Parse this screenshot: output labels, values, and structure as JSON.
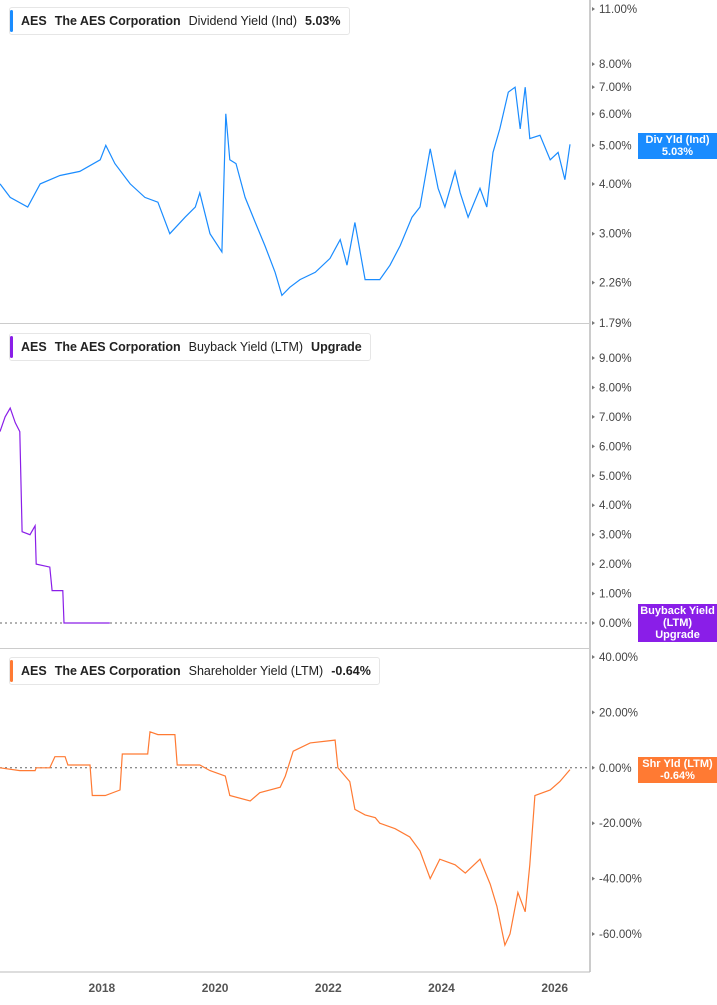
{
  "chart_data": [
    {
      "type": "line",
      "ticker": "AES",
      "company": "The AES Corporation",
      "metric": "Dividend Yield (Ind)",
      "current": "5.03%",
      "tag_label": "Div Yld (Ind)",
      "color": "#1a8cff",
      "scale": "log",
      "ylim": [
        1.79,
        11.0
      ],
      "yticks": [
        "11.00%",
        "8.00%",
        "7.00%",
        "6.00%",
        "5.00%",
        "4.00%",
        "3.00%",
        "2.26%",
        "1.79%"
      ],
      "ytick_values": [
        11,
        8,
        7,
        6,
        5,
        4,
        3,
        2.26,
        1.79
      ],
      "x": [
        2016.2,
        2016.38,
        2016.69,
        2016.91,
        2017.26,
        2017.61,
        2017.97,
        2018.07,
        2018.23,
        2018.5,
        2018.76,
        2018.99,
        2019.2,
        2019.47,
        2019.65,
        2019.73,
        2019.91,
        2020.12,
        2020.19,
        2020.26,
        2020.37,
        2020.53,
        2020.71,
        2020.88,
        2021.06,
        2021.18,
        2021.32,
        2021.5,
        2021.77,
        2022.03,
        2022.21,
        2022.33,
        2022.47,
        2022.65,
        2022.91,
        2023.09,
        2023.27,
        2023.48,
        2023.62,
        2023.8,
        2023.94,
        2024.06,
        2024.24,
        2024.33,
        2024.47,
        2024.68,
        2024.8,
        2024.91,
        2025.03,
        2025.18,
        2025.3,
        2025.39,
        2025.48,
        2025.56,
        2025.74,
        2025.92,
        2026.06,
        2026.18,
        2026.27
      ],
      "y": [
        4.0,
        3.7,
        3.5,
        4.0,
        4.2,
        4.3,
        4.6,
        5.0,
        4.5,
        4.0,
        3.7,
        3.6,
        3.0,
        3.3,
        3.5,
        3.8,
        3.0,
        2.7,
        6.0,
        4.6,
        4.5,
        3.7,
        3.2,
        2.8,
        2.4,
        2.1,
        2.2,
        2.3,
        2.4,
        2.6,
        2.9,
        2.5,
        3.2,
        2.3,
        2.3,
        2.5,
        2.8,
        3.3,
        3.5,
        4.9,
        3.9,
        3.5,
        4.3,
        3.8,
        3.3,
        3.9,
        3.5,
        4.8,
        5.5,
        6.8,
        7.0,
        5.5,
        7.0,
        5.2,
        5.3,
        4.6,
        4.8,
        4.1,
        5.03
      ]
    },
    {
      "type": "line",
      "ticker": "AES",
      "company": "The AES Corporation",
      "metric": "Buyback Yield (LTM)",
      "current": "Upgrade",
      "tag_label": "Buyback Yield (LTM)",
      "color": "#8a1ee8",
      "scale": "linear",
      "ylim": [
        0,
        9
      ],
      "yticks": [
        "9.00%",
        "8.00%",
        "7.00%",
        "6.00%",
        "5.00%",
        "4.00%",
        "3.00%",
        "2.00%",
        "1.00%",
        "0.00%"
      ],
      "ytick_values": [
        9,
        8,
        7,
        6,
        5,
        4,
        3,
        2,
        1,
        0
      ],
      "x": [
        2016.2,
        2016.29,
        2016.38,
        2016.47,
        2016.55,
        2016.59,
        2016.73,
        2016.82,
        2016.84,
        2017.08,
        2017.12,
        2017.31,
        2017.33,
        2018.14
      ],
      "y": [
        6.5,
        7.0,
        7.3,
        6.8,
        6.5,
        3.1,
        3.0,
        3.3,
        2.0,
        1.9,
        1.1,
        1.1,
        0,
        0
      ]
    },
    {
      "type": "line",
      "ticker": "AES",
      "company": "The AES Corporation",
      "metric": "Shareholder Yield (LTM)",
      "current": "-0.64%",
      "tag_label": "Shr Yld (LTM)",
      "color": "#ff7a33",
      "scale": "linear",
      "ylim": [
        -60,
        40
      ],
      "yticks": [
        "40.00%",
        "20.00%",
        "0.00%",
        "-20.00%",
        "-40.00%",
        "-60.00%"
      ],
      "ytick_values": [
        40,
        20,
        0,
        -20,
        -40,
        -60
      ],
      "x": [
        2016.2,
        2016.55,
        2016.82,
        2016.84,
        2017.08,
        2017.17,
        2017.35,
        2017.4,
        2017.79,
        2017.83,
        2018.06,
        2018.32,
        2018.36,
        2018.81,
        2018.85,
        2018.99,
        2019.29,
        2019.33,
        2019.73,
        2019.91,
        2020.18,
        2020.26,
        2020.62,
        2020.79,
        2021.15,
        2021.24,
        2021.38,
        2021.68,
        2022.12,
        2022.17,
        2022.38,
        2022.47,
        2022.65,
        2022.83,
        2022.91,
        2023.18,
        2023.44,
        2023.62,
        2023.8,
        2023.97,
        2024.24,
        2024.42,
        2024.68,
        2024.86,
        2024.98,
        2025.12,
        2025.21,
        2025.35,
        2025.48,
        2025.56,
        2025.65,
        2025.92,
        2026.09,
        2026.27
      ],
      "y": [
        0,
        -1,
        -1,
        0,
        0,
        4,
        4,
        1,
        1,
        -10,
        -10,
        -8,
        5,
        5,
        13,
        12,
        12,
        1,
        1,
        -1,
        -3,
        -10,
        -12,
        -9,
        -7,
        -3,
        6,
        9,
        10,
        0,
        -5,
        -15,
        -17,
        -18,
        -20,
        -22,
        -25,
        -30,
        -40,
        -33,
        -35,
        -38,
        -33,
        -42,
        -50,
        -64,
        -60,
        -45,
        -52,
        -35,
        -10,
        -8,
        -5,
        -0.64
      ]
    }
  ],
  "xaxis": {
    "ticks": [
      "2018",
      "2020",
      "2022",
      "2024",
      "2026"
    ],
    "tick_values": [
      2018,
      2020,
      2022,
      2024,
      2026
    ]
  }
}
